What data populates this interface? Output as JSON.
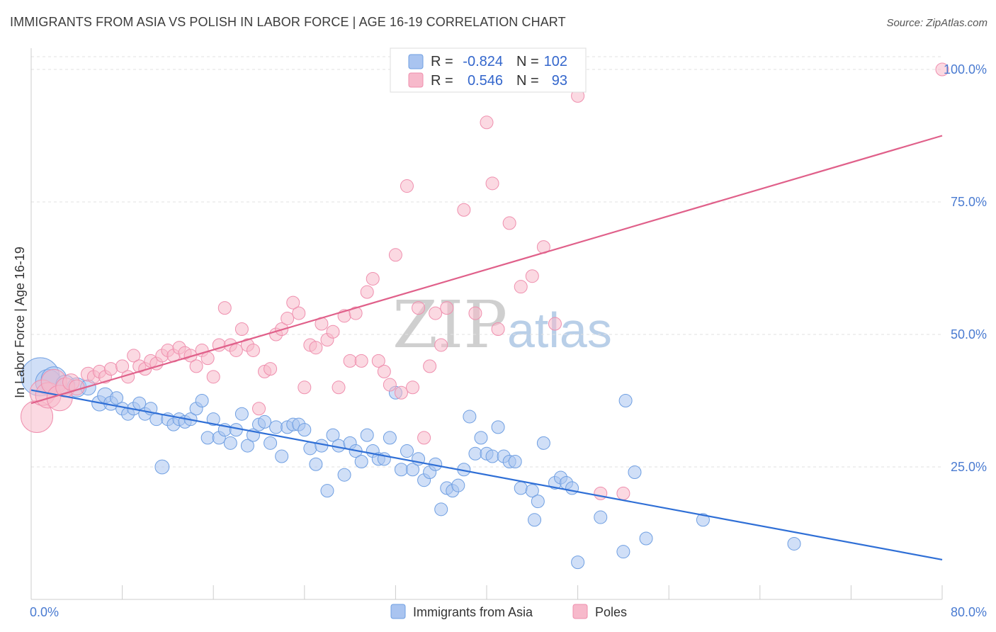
{
  "title": "IMMIGRANTS FROM ASIA VS POLISH IN LABOR FORCE | AGE 16-19 CORRELATION CHART",
  "source": "Source: ZipAtlas.com",
  "watermark": {
    "part1": "ZIP",
    "part2": "atlas"
  },
  "legend_top": [
    {
      "r_label": "R =",
      "r_value": "-0.824",
      "n_label": "N =",
      "n_value": "102",
      "color": "#a9c4f0"
    },
    {
      "r_label": "R =",
      "r_value": "0.546",
      "n_label": "N =",
      "n_value": "93",
      "color": "#f7b9cb"
    }
  ],
  "chart_data": {
    "type": "scatter",
    "ylabel": "In Labor Force | Age 16-19",
    "xlim": [
      0,
      80
    ],
    "ylim": [
      0,
      100
    ],
    "x_tick_labels": [
      "0.0%",
      "80.0%"
    ],
    "y_ticks": [
      25,
      50,
      75,
      100
    ],
    "y_tick_labels": [
      "25.0%",
      "50.0%",
      "75.0%",
      "100.0%"
    ],
    "grid": "horizontal dashed",
    "legend": "bottom-center",
    "series": [
      {
        "name": "Immigrants from Asia",
        "color": "#6f9fe2",
        "fill": "#a9c4f0",
        "trend": {
          "x0": 0,
          "y0": 39.5,
          "x1": 80,
          "y1": 7.5,
          "color": "#2f6fd6"
        },
        "points": [
          [
            0.8,
            42,
            3
          ],
          [
            1.5,
            41,
            2
          ],
          [
            2,
            41.5,
            2
          ],
          [
            3,
            40.5,
            1.5
          ],
          [
            4,
            40,
            1.5
          ],
          [
            5,
            40,
            1.2
          ],
          [
            6,
            37,
            1.2
          ],
          [
            6.5,
            38.5,
            1.2
          ],
          [
            7,
            37,
            1.1
          ],
          [
            7.5,
            38,
            1
          ],
          [
            8,
            36,
            1
          ],
          [
            8.5,
            35,
            1
          ],
          [
            9,
            36,
            1
          ],
          [
            9.5,
            37,
            1
          ],
          [
            10,
            35,
            1
          ],
          [
            10.5,
            36,
            1
          ],
          [
            11,
            34,
            1
          ],
          [
            11.5,
            25,
            1.1
          ],
          [
            12,
            34,
            1
          ],
          [
            12.5,
            33,
            1
          ],
          [
            13,
            34,
            1
          ],
          [
            13.5,
            33.5,
            1
          ],
          [
            14,
            34,
            1
          ],
          [
            14.5,
            36,
            1
          ],
          [
            15,
            37.5,
            1
          ],
          [
            15.5,
            30.5,
            1
          ],
          [
            16,
            34,
            1
          ],
          [
            16.5,
            30.5,
            1
          ],
          [
            17,
            32,
            1
          ],
          [
            17.5,
            29.5,
            1
          ],
          [
            18,
            32,
            1
          ],
          [
            18.5,
            35,
            1
          ],
          [
            19,
            29,
            1
          ],
          [
            19.5,
            31,
            1
          ],
          [
            20,
            33,
            1
          ],
          [
            20.5,
            33.5,
            1
          ],
          [
            21,
            29.5,
            1
          ],
          [
            21.5,
            32.5,
            1
          ],
          [
            22,
            27,
            1
          ],
          [
            22.5,
            32.5,
            1
          ],
          [
            23,
            33,
            1
          ],
          [
            23.5,
            33,
            1
          ],
          [
            24,
            32,
            1
          ],
          [
            24.5,
            28.5,
            1
          ],
          [
            25,
            25.5,
            1
          ],
          [
            25.5,
            29,
            1
          ],
          [
            26,
            20.5,
            1
          ],
          [
            26.5,
            31,
            1
          ],
          [
            27,
            29,
            1
          ],
          [
            27.5,
            23.5,
            1
          ],
          [
            28,
            29.5,
            1
          ],
          [
            28.5,
            28,
            1
          ],
          [
            29,
            26,
            1
          ],
          [
            29.5,
            31,
            1
          ],
          [
            30,
            28,
            1
          ],
          [
            30.5,
            26.5,
            1
          ],
          [
            31,
            26.5,
            1
          ],
          [
            31.5,
            30.5,
            1
          ],
          [
            32,
            39,
            1
          ],
          [
            32.5,
            24.5,
            1
          ],
          [
            33,
            28,
            1
          ],
          [
            33.5,
            24.5,
            1
          ],
          [
            34,
            26.5,
            1
          ],
          [
            34.5,
            22.5,
            1
          ],
          [
            35,
            24,
            1
          ],
          [
            35.5,
            25.5,
            1
          ],
          [
            36,
            17,
            1
          ],
          [
            36.5,
            21,
            1
          ],
          [
            37,
            20.5,
            1
          ],
          [
            37.5,
            21.5,
            1
          ],
          [
            38,
            24.5,
            1
          ],
          [
            38.5,
            34.5,
            1
          ],
          [
            39,
            27.5,
            1
          ],
          [
            39.5,
            30.5,
            1
          ],
          [
            40,
            27.5,
            1
          ],
          [
            40.5,
            27,
            1
          ],
          [
            41,
            32.5,
            1
          ],
          [
            41.5,
            27,
            1
          ],
          [
            42,
            26,
            1
          ],
          [
            42.5,
            26,
            1
          ],
          [
            43,
            21,
            1
          ],
          [
            44,
            20.5,
            1
          ],
          [
            44.5,
            18.5,
            1
          ],
          [
            44.2,
            15,
            1
          ],
          [
            45,
            29.5,
            1
          ],
          [
            46,
            22,
            1
          ],
          [
            46.5,
            23,
            1
          ],
          [
            47,
            22,
            1
          ],
          [
            47.5,
            21,
            1
          ],
          [
            48,
            7,
            1
          ],
          [
            50,
            15.5,
            1
          ],
          [
            52,
            9,
            1
          ],
          [
            52.2,
            37.5,
            1
          ],
          [
            53,
            24,
            1
          ],
          [
            54,
            11.5,
            1
          ],
          [
            59,
            15,
            1
          ],
          [
            67,
            10.5,
            1
          ]
        ]
      },
      {
        "name": "Poles",
        "color": "#ef8fae",
        "fill": "#f7b9cb",
        "trend": {
          "x0": 0,
          "y0": 37,
          "x1": 80,
          "y1": 87.5,
          "color": "#e0608a"
        },
        "points": [
          [
            0.5,
            34.5,
            2.5
          ],
          [
            1,
            39,
            2
          ],
          [
            1.5,
            38.5,
            2
          ],
          [
            2,
            41,
            2
          ],
          [
            2.5,
            38,
            2
          ],
          [
            3,
            40,
            1.5
          ],
          [
            3.5,
            41,
            1.3
          ],
          [
            4,
            40,
            1.2
          ],
          [
            5,
            42.5,
            1.1
          ],
          [
            5.5,
            42,
            1
          ],
          [
            6,
            43,
            1
          ],
          [
            6.5,
            42,
            1
          ],
          [
            7,
            43.5,
            1
          ],
          [
            8,
            44,
            1
          ],
          [
            8.5,
            42,
            1
          ],
          [
            9,
            46,
            1
          ],
          [
            9.5,
            44,
            1
          ],
          [
            10,
            43.5,
            1
          ],
          [
            10.5,
            45,
            1
          ],
          [
            11,
            44.5,
            1
          ],
          [
            11.5,
            46,
            1
          ],
          [
            12,
            47,
            1
          ],
          [
            12.5,
            46,
            1
          ],
          [
            13,
            47.5,
            1
          ],
          [
            13.5,
            46.5,
            1
          ],
          [
            14,
            46,
            1
          ],
          [
            14.5,
            44,
            1
          ],
          [
            15,
            47,
            1
          ],
          [
            15.5,
            45.5,
            1
          ],
          [
            16,
            42,
            1
          ],
          [
            16.5,
            48,
            1
          ],
          [
            17,
            55,
            1
          ],
          [
            17.5,
            48,
            1
          ],
          [
            18,
            47,
            1
          ],
          [
            18.5,
            51,
            1
          ],
          [
            19,
            48,
            1
          ],
          [
            19.5,
            47,
            1
          ],
          [
            20,
            36,
            1
          ],
          [
            20.5,
            43,
            1
          ],
          [
            21,
            43.5,
            1
          ],
          [
            21.5,
            50,
            1
          ],
          [
            22,
            51,
            1
          ],
          [
            22.5,
            53,
            1
          ],
          [
            23,
            56,
            1
          ],
          [
            23.5,
            54,
            1
          ],
          [
            24,
            40,
            1
          ],
          [
            24.5,
            48,
            1
          ],
          [
            25,
            47.5,
            1
          ],
          [
            25.5,
            52,
            1
          ],
          [
            26,
            49,
            1
          ],
          [
            26.5,
            50.5,
            1
          ],
          [
            27,
            40,
            1
          ],
          [
            27.5,
            53.5,
            1
          ],
          [
            28,
            45,
            1
          ],
          [
            28.5,
            54,
            1
          ],
          [
            29,
            45,
            1
          ],
          [
            29.5,
            58,
            1
          ],
          [
            30,
            60.5,
            1
          ],
          [
            30.5,
            45,
            1
          ],
          [
            31,
            43,
            1
          ],
          [
            31.5,
            40.5,
            1
          ],
          [
            32,
            65,
            1
          ],
          [
            32.5,
            39,
            1
          ],
          [
            33,
            78,
            1
          ],
          [
            33.5,
            40,
            1
          ],
          [
            34,
            55,
            1
          ],
          [
            34.5,
            30.5,
            1
          ],
          [
            35,
            44,
            1
          ],
          [
            35.5,
            54,
            1
          ],
          [
            36,
            48,
            1
          ],
          [
            36.5,
            55,
            1
          ],
          [
            37,
            100,
            1
          ],
          [
            37.5,
            100,
            1
          ],
          [
            38,
            73.5,
            1
          ],
          [
            39,
            54,
            1
          ],
          [
            40,
            90,
            1
          ],
          [
            40.5,
            78.5,
            1
          ],
          [
            41,
            51,
            1
          ],
          [
            42,
            71,
            1
          ],
          [
            43,
            59,
            1
          ],
          [
            44,
            61,
            1
          ],
          [
            45,
            66.5,
            1
          ],
          [
            46,
            52,
            1
          ],
          [
            48,
            95,
            1
          ],
          [
            50,
            20,
            1
          ],
          [
            52,
            20,
            1
          ],
          [
            80,
            100,
            1
          ]
        ]
      }
    ]
  }
}
